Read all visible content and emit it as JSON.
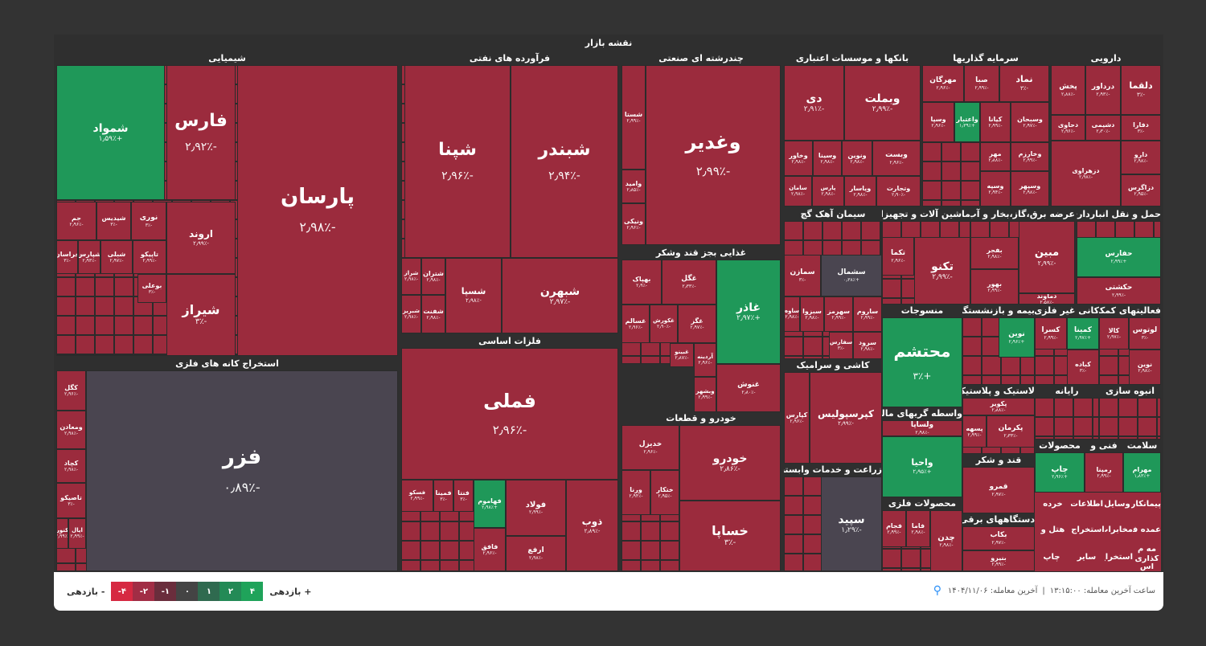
{
  "title": "نقشه بازار",
  "sectors": [
    {
      "name": "شیمیایی",
      "tiles": [
        {
          "sym": "پارسان",
          "chg": "-۲٫۹۸٪"
        },
        {
          "sym": "فارس",
          "chg": "-۲٫۹۲٪"
        },
        {
          "sym": "شموا‌د",
          "chg": "+۱٫۵۹٪"
        },
        {
          "sym": "اروند",
          "chg": "-۲٫۹۹٪"
        },
        {
          "sym": "نوری",
          "chg": "-۳٪"
        },
        {
          "sym": "شیدیس",
          "chg": "-۳٪"
        },
        {
          "sym": "جم",
          "chg": "-۲٫۹۶٪"
        },
        {
          "sym": "تاپیکو",
          "chg": "-۲٫۹۹٪"
        },
        {
          "sym": "شبلی",
          "chg": "-۲٫۹۷٪"
        },
        {
          "sym": "شپارس",
          "chg": "-۲٫۹۳٪"
        },
        {
          "sym": "خراسان",
          "chg": "-۳٪"
        },
        {
          "sym": "بوعلی",
          "chg": "-۳٪"
        },
        {
          "sym": "شیراز",
          "chg": "-۳٪"
        }
      ]
    },
    {
      "name": "استخراج کانه های فلزی",
      "tiles": [
        {
          "sym": "فزر",
          "chg": "-۰٫۸۹٪"
        },
        {
          "sym": "کگل",
          "chg": "-۲٫۹۶٪"
        },
        {
          "sym": "ومعادن",
          "chg": "-۲٫۹۸٪"
        },
        {
          "sym": "کچاد",
          "chg": "-۲٫۹۸٪"
        },
        {
          "sym": "تاصیکو",
          "chg": "-۳٪"
        },
        {
          "sym": "اپال",
          "chg": "-۲٫۹۹٪"
        },
        {
          "sym": "کنور",
          "chg": "-۲٫۹۹٪"
        }
      ]
    },
    {
      "name": "فرآورده های نفتی",
      "tiles": [
        {
          "sym": "شبندر",
          "chg": "-۲٫۹۴٪"
        },
        {
          "sym": "شپنا",
          "chg": "-۲٫۹۶٪"
        },
        {
          "sym": "شبهرن",
          "chg": "-۲٫۹۷٪"
        },
        {
          "sym": "شسپا",
          "chg": "-۲٫۹۸٪"
        },
        {
          "sym": "شتران",
          "chg": "-۲٫۹۸٪"
        },
        {
          "sym": "شراز",
          "chg": "-۲٫۹۸٪"
        },
        {
          "sym": "شفنت",
          "chg": "-۲٫۹۸٪"
        },
        {
          "sym": "شبریز",
          "chg": "-۲٫۹۸٪"
        }
      ]
    },
    {
      "name": "فلزات اساسی",
      "tiles": [
        {
          "sym": "فملی",
          "chg": "-۲٫۹۶٪"
        },
        {
          "sym": "ذوب",
          "chg": "-۲٫۸۹٪"
        },
        {
          "sym": "فولاد",
          "chg": "-۲٫۹۹٪"
        },
        {
          "sym": "فهاموم",
          "chg": "+۲٫۹۸٪"
        },
        {
          "sym": "فنتا",
          "chg": "-۳٪"
        },
        {
          "sym": "فمینا",
          "chg": "-۳٪"
        },
        {
          "sym": "فسکو",
          "chg": "-۲٫۹۹٪"
        },
        {
          "sym": "ارفع",
          "chg": "-۲٫۹۸٪"
        },
        {
          "sym": "فافق",
          "chg": "-۲٫۹۶٪"
        }
      ]
    },
    {
      "name": "چندرشته ای صنعتی",
      "tiles": [
        {
          "sym": "وغدیر",
          "chg": "-۲٫۹۹٪"
        },
        {
          "sym": "شستا",
          "chg": "-۲٫۹۹٪"
        },
        {
          "sym": "وامید",
          "chg": "-۲٫۸۵٪"
        },
        {
          "sym": "ونیکی",
          "chg": "-۲٫۹۶٪"
        }
      ]
    },
    {
      "name": "غذایی بجز قند وشکر",
      "tiles": [
        {
          "sym": "غاذر",
          "chg": "+۲٫۹۷٪"
        },
        {
          "sym": "غگل",
          "chg": "-۲٫۳۳٪"
        },
        {
          "sym": "بهپاک",
          "chg": "-۲٫۹٪"
        },
        {
          "sym": "غگز",
          "chg": "-۲٫۹۷٪"
        },
        {
          "sym": "غکورش",
          "chg": "-۲٫۹۰٪"
        },
        {
          "sym": "غسالم",
          "chg": "-۲٫۹۶٪"
        },
        {
          "sym": "غنوش",
          "chg": "-۲٫۸۰٪"
        },
        {
          "sym": "آردینه",
          "chg": "-۲٫۹۶٪"
        },
        {
          "sym": "غبینو",
          "chg": "-۲٫۸۷٪"
        },
        {
          "sym": "وبشهر",
          "chg": "-۲٫۹۹٪"
        }
      ]
    },
    {
      "name": "خودرو و قطعات",
      "tiles": [
        {
          "sym": "خودرو",
          "chg": "-۲٫۸۶٪"
        },
        {
          "sym": "خساپا",
          "chg": "-۳٪"
        },
        {
          "sym": "خدیزل",
          "chg": "-۲٫۹۶٪"
        },
        {
          "sym": "ختکار",
          "chg": "-۲٫۹۵٪"
        },
        {
          "sym": "ورنا",
          "chg": "-۲٫۹۴٪"
        }
      ]
    },
    {
      "name": "بانکها و موسسات اعتباری",
      "tiles": [
        {
          "sym": "وبملت",
          "chg": "-۲٫۹۹٪"
        },
        {
          "sym": "دی",
          "chg": "-۲٫۹۱٪"
        },
        {
          "sym": "وبست",
          "chg": "-۲٫۹۶٪"
        },
        {
          "sym": "ونوین",
          "chg": "-۲٫۹۸٪"
        },
        {
          "sym": "وسینا",
          "chg": "-۲٫۹۸٪"
        },
        {
          "sym": "وخاور",
          "chg": "-۲٫۹۸٪"
        },
        {
          "sym": "وتجارت",
          "chg": "-۲٫۹۰٪"
        },
        {
          "sym": "وپاسار",
          "chg": "-۲٫۹۸٪"
        },
        {
          "sym": "پارس",
          "chg": "-۲٫۹۸٪"
        },
        {
          "sym": "سامان",
          "chg": "-۲٫۹۸٪"
        }
      ]
    },
    {
      "name": "سرمایه گذاریها",
      "tiles": [
        {
          "sym": "نماد",
          "chg": "-۳٪"
        },
        {
          "sym": "صبا",
          "chg": "-۲٫۹۹٪"
        },
        {
          "sym": "مهرگان",
          "chg": "-۲٫۹۶٪"
        },
        {
          "sym": "وسبحان",
          "chg": "-۲٫۹۷٪"
        },
        {
          "sym": "کیانا",
          "chg": "-۲٫۹۹٪"
        },
        {
          "sym": "واعتبار",
          "chg": "+۱٫۳۹٪"
        },
        {
          "sym": "وسپا",
          "chg": "-۲٫۹۶٪"
        },
        {
          "sym": "وخارزم",
          "chg": "-۲٫۹۹٪"
        },
        {
          "sym": "مهر",
          "chg": "-۲٫۸۸٪"
        },
        {
          "sym": "وسپهر",
          "chg": "-۲٫۹۸٪"
        },
        {
          "sym": "وسپه",
          "chg": "-۲٫۹۴٪"
        }
      ]
    },
    {
      "name": "دارویی",
      "tiles": [
        {
          "sym": "دلقما",
          "chg": "-۳٪"
        },
        {
          "sym": "درداور",
          "chg": "-۲٫۹۳٪"
        },
        {
          "sym": "پخش",
          "chg": "-۲٫۸۸٪"
        },
        {
          "sym": "دفارا",
          "chg": "-۳٪"
        },
        {
          "sym": "دشیمی",
          "chg": "-۲٫۳۰٪"
        },
        {
          "sym": "دحاوی",
          "chg": "-۲٫۹۶٪"
        },
        {
          "sym": "دارو",
          "chg": "-۲٫۹۸٪"
        },
        {
          "sym": "دزاگرس",
          "chg": "-۲٫۹۵٪"
        },
        {
          "sym": "دزهراوی",
          "chg": "-۲٫۹۸٪"
        }
      ]
    },
    {
      "name": "سیمان آهک گچ",
      "tiles": [
        {
          "sym": "سشمال",
          "chg": "+۰٫۳۸٪"
        },
        {
          "sym": "سمازن",
          "chg": "-۳٪"
        },
        {
          "sym": "ساروم",
          "chg": "-۲٫۹۹٪"
        },
        {
          "sym": "سهرمز",
          "chg": "-۲٫۹۹٪"
        },
        {
          "sym": "سبزوا",
          "chg": "-۲٫۹۸٪"
        },
        {
          "sym": "ساوه",
          "chg": "-۲٫۹۸٪"
        },
        {
          "sym": "سفارس",
          "chg": "-۳٪"
        },
        {
          "sym": "سرود",
          "chg": "-۲٫۹۸٪"
        }
      ]
    },
    {
      "name": "ماشین آلات و تجهیزات",
      "tiles": [
        {
          "sym": "تکنو",
          "chg": "-۲٫۹۹٪"
        },
        {
          "sym": "تکما",
          "chg": "-۲٫۹۶٪"
        }
      ]
    },
    {
      "name": "عرضه برق،گاز،بخار و آب",
      "tiles": [
        {
          "sym": "مبین",
          "chg": "-۲٫۹۹٪"
        },
        {
          "sym": "دماوند",
          "chg": "-۲٫۵۸٪"
        },
        {
          "sym": "بفجر",
          "chg": "-۲٫۹۸٪"
        },
        {
          "sym": "بهور",
          "chg": "-۲٫۹۹٪"
        }
      ]
    },
    {
      "name": "حمل و نقل انبارداری و",
      "tiles": [
        {
          "sym": "حفارس",
          "chg": "+۲٫۹۹٪"
        },
        {
          "sym": "حکشتی",
          "chg": "-۲٫۹۹٪"
        }
      ]
    },
    {
      "name": "منسوجات",
      "tiles": [
        {
          "sym": "محتشم",
          "chg": "+۳٪"
        }
      ]
    },
    {
      "name": "بیمه و بازنشستگی",
      "tiles": [
        {
          "sym": "نوین",
          "chg": "+۲٫۹۶٪"
        }
      ]
    },
    {
      "name": "کانی غیر فلزی",
      "tiles": [
        {
          "sym": "کمینا",
          "chg": "+۲٫۹۷٪"
        },
        {
          "sym": "کسرا",
          "chg": "-۲٫۹۹٪"
        },
        {
          "sym": "کباده",
          "chg": "-۳٪"
        }
      ]
    },
    {
      "name": "فعالیتهای کمکی",
      "tiles": [
        {
          "sym": "لوتوس",
          "chg": "-۳٪"
        },
        {
          "sym": "کالا",
          "chg": "-۲٫۹۷٪"
        },
        {
          "sym": "نوین",
          "chg": "-۲٫۹۸٪"
        }
      ]
    },
    {
      "name": "کاشی و سرامیک",
      "tiles": [
        {
          "sym": "کپرسپولیس",
          "chg": "-۲٫۹۹٪"
        },
        {
          "sym": "کپارس",
          "chg": "-۲٫۹۶٪"
        }
      ]
    },
    {
      "name": "زراعت و خدمات وابسته",
      "tiles": [
        {
          "sym": "سپید",
          "chg": "-۱٫۲۹٪"
        }
      ]
    },
    {
      "name": "واسطه گریهای مالی و",
      "tiles": [
        {
          "sym": "ولساپا",
          "chg": "-۲٫۹۸٪"
        },
        {
          "sym": "واحیا",
          "chg": "+۲٫۹۵٪"
        }
      ]
    },
    {
      "name": "لاستیک و پلاستیک",
      "tiles": [
        {
          "sym": "پکویر",
          "chg": "-۲٫۸۸٪"
        },
        {
          "sym": "پکرمان",
          "chg": "-۲٫۳۳٪"
        },
        {
          "sym": "پسهه",
          "chg": "-۲٫۹۹٪"
        }
      ]
    },
    {
      "name": "رایانه",
      "tiles": []
    },
    {
      "name": "انبوه سازی",
      "tiles": []
    },
    {
      "name": "محصولات فلزی",
      "tiles": [
        {
          "sym": "چدن",
          "chg": "-۲٫۹۸٪"
        },
        {
          "sym": "فاما",
          "chg": "-۲٫۹۸٪"
        },
        {
          "sym": "فجام",
          "chg": "-۲٫۹۹٪"
        }
      ]
    },
    {
      "name": "قند و شکر",
      "tiles": [
        {
          "sym": "قمرو",
          "chg": "-۲٫۹۷٪"
        }
      ]
    },
    {
      "name": "دستگاههای برقی",
      "tiles": [
        {
          "sym": "بکاب",
          "chg": "-۲٫۹۷٪"
        },
        {
          "sym": "بنیرو",
          "chg": "-۲٫۹۹٪"
        }
      ]
    },
    {
      "name": "محصولات",
      "tiles": [
        {
          "sym": "چاپ",
          "chg": "+۲٫۹۶٪"
        }
      ]
    },
    {
      "name": "فنی و",
      "tiles": [
        {
          "sym": "رمپنا",
          "chg": "-۲٫۹۹٪"
        }
      ]
    },
    {
      "name": "سلامت",
      "tiles": [
        {
          "sym": "مهرام",
          "chg": "+۱٫۸۳٪"
        }
      ]
    },
    {
      "name": "خرده",
      "tiles": []
    },
    {
      "name": "اطلاعات",
      "tiles": []
    },
    {
      "name": "وسایل",
      "tiles": []
    },
    {
      "name": "پیمانکاری",
      "tiles": []
    },
    {
      "name": "هتل و",
      "tiles": []
    },
    {
      "name": "استخراج",
      "tiles": []
    },
    {
      "name": "مخابرات",
      "tiles": []
    },
    {
      "name": "عمده فروشی",
      "tiles": []
    },
    {
      "name": "چاپ",
      "tiles": []
    },
    {
      "name": "سایر",
      "tiles": []
    },
    {
      "name": "استخراج",
      "tiles": []
    },
    {
      "name": "مه م",
      "tiles": []
    },
    {
      "name": "کذاری",
      "tiles": []
    },
    {
      "name": "اس",
      "tiles": []
    }
  ],
  "legend": {
    "last_trade_label": "آخرین معامله: ۱۴۰۴/۱۱/۰۶",
    "last_trade_time": "ساعت آخرین معامله: ۱۳:۱۵:۰۰",
    "separator": "|",
    "positive_label": "بازدهی +",
    "negative_label": "بازدهی -",
    "scale": [
      "۴",
      "۲",
      "۱",
      "۰",
      "-۱",
      "-۲",
      "-۴"
    ],
    "scale_colors": [
      "#1fa35a",
      "#238a56",
      "#2f6a4f",
      "#444444",
      "#6a2d3c",
      "#a12d45",
      "#d62942"
    ]
  },
  "colors": {
    "negative": "#9b2b3d",
    "positive": "#1f9859",
    "neutral": "#4a4550",
    "background": "#333333"
  }
}
